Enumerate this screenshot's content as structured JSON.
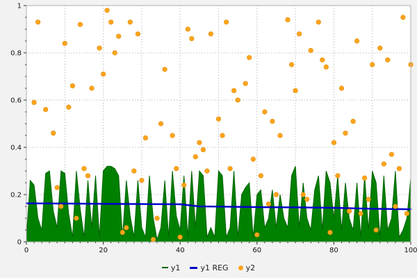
{
  "chart_data": {
    "type": "line",
    "title": "",
    "xlabel": "",
    "ylabel": "",
    "xlim": [
      0,
      100
    ],
    "ylim": [
      0,
      1
    ],
    "x_ticks": [
      0,
      20,
      40,
      60,
      80,
      100
    ],
    "y_ticks": [
      0,
      0.2,
      0.4,
      0.6,
      0.8,
      1
    ],
    "grid": true,
    "grid_color": "#aaaaaa",
    "plot_bg": "#ffffff",
    "page_bg": "#f2f2f2",
    "frame_color": "#b0b0b0",
    "tick_color": "#333333",
    "label_color": "#111111",
    "legend_position": "bottom",
    "series": [
      {
        "name": "y1",
        "type": "area",
        "color": "#008000",
        "stroke": "#006400",
        "x_start": 0,
        "x_step": 1,
        "y": [
          0.02,
          0.26,
          0.24,
          0.1,
          0.05,
          0.29,
          0.3,
          0.13,
          0.06,
          0.3,
          0.29,
          0.12,
          0.02,
          0.3,
          0.14,
          0.02,
          0.26,
          0.06,
          0.28,
          0.02,
          0.3,
          0.32,
          0.32,
          0.31,
          0.28,
          0.02,
          0.26,
          0.11,
          0.02,
          0.26,
          0.06,
          0.02,
          0.28,
          0.1,
          0.01,
          0.06,
          0.26,
          0.02,
          0.3,
          0.11,
          0.05,
          0.28,
          0.02,
          0.3,
          0.06,
          0.3,
          0.28,
          0.02,
          0.06,
          0.02,
          0.3,
          0.28,
          0.02,
          0.06,
          0.3,
          0.02,
          0.2,
          0.23,
          0.25,
          0.02,
          0.2,
          0.22,
          0.06,
          0.1,
          0.22,
          0.06,
          0.2,
          0.1,
          0.06,
          0.28,
          0.32,
          0.06,
          0.25,
          0.1,
          0.05,
          0.22,
          0.28,
          0.05,
          0.3,
          0.25,
          0.1,
          0.28,
          0.05,
          0.25,
          0.1,
          0.05,
          0.25,
          0.02,
          0.28,
          0.05,
          0.3,
          0.25,
          0.02,
          0.28,
          0.05,
          0.1,
          0.3,
          0.02,
          0.05,
          0.1,
          0.27
        ]
      },
      {
        "name": "y1 REG",
        "type": "line",
        "color": "#0000c8",
        "width": 2.5,
        "x": [
          0,
          10,
          20,
          30,
          40,
          45,
          50,
          60,
          70,
          80,
          90,
          100
        ],
        "y": [
          0.163,
          0.162,
          0.161,
          0.16,
          0.159,
          0.15,
          0.149,
          0.147,
          0.146,
          0.144,
          0.14,
          0.138
        ]
      },
      {
        "name": "y2",
        "type": "scatter",
        "color": "#ffa51e",
        "edge": "#e08a00",
        "x": [
          2,
          3,
          5,
          7,
          8,
          9,
          10,
          11,
          12,
          13,
          14,
          15,
          16,
          17,
          19,
          20,
          21,
          22,
          23,
          24,
          25,
          26,
          27,
          28,
          29,
          30,
          31,
          33,
          34,
          35,
          36,
          38,
          39,
          40,
          41,
          42,
          43,
          44,
          45,
          46,
          47,
          48,
          50,
          51,
          52,
          53,
          54,
          55,
          57,
          58,
          59,
          60,
          61,
          62,
          63,
          64,
          65,
          66,
          68,
          69,
          70,
          71,
          72,
          73,
          74,
          76,
          77,
          78,
          79,
          80,
          81,
          82,
          83,
          84,
          85,
          86,
          87,
          88,
          89,
          90,
          91,
          92,
          93,
          94,
          95,
          96,
          97,
          98,
          99,
          100
        ],
        "y": [
          0.59,
          0.93,
          0.56,
          0.46,
          0.23,
          0.15,
          0.84,
          0.57,
          0.66,
          0.1,
          0.92,
          0.31,
          0.28,
          0.65,
          0.82,
          0.71,
          0.98,
          0.93,
          0.8,
          0.87,
          0.04,
          0.06,
          0.93,
          0.3,
          0.88,
          0.26,
          0.44,
          0.01,
          0.1,
          0.5,
          0.73,
          0.45,
          0.31,
          0.02,
          0.24,
          0.9,
          0.86,
          0.36,
          0.42,
          0.39,
          0.3,
          0.88,
          0.52,
          0.45,
          0.93,
          0.31,
          0.64,
          0.6,
          0.67,
          0.78,
          0.35,
          0.03,
          0.28,
          0.55,
          0.16,
          0.51,
          0.2,
          0.45,
          0.94,
          0.75,
          0.64,
          0.88,
          0.2,
          0.18,
          0.81,
          0.93,
          0.77,
          0.74,
          0.04,
          0.42,
          0.28,
          0.65,
          0.46,
          0.13,
          0.51,
          0.85,
          0.12,
          0.27,
          0.18,
          0.75,
          0.05,
          0.82,
          0.33,
          0.77,
          0.37,
          0.15,
          0.31,
          0.95,
          0.12,
          0.75
        ]
      }
    ]
  },
  "legend": {
    "items": [
      {
        "label": "y1"
      },
      {
        "label": "y1 REG"
      },
      {
        "label": "y2"
      }
    ]
  }
}
